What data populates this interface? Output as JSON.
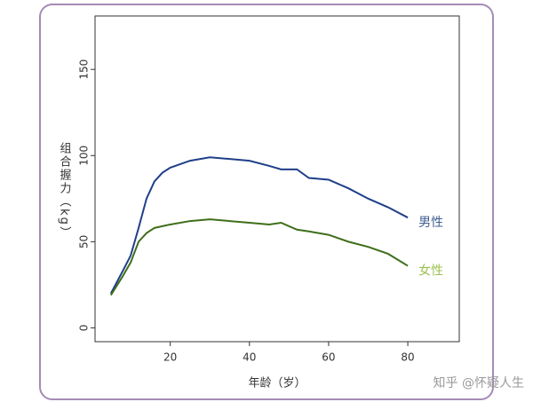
{
  "chart_data": {
    "type": "line",
    "y_label": "组合握力（kg）",
    "x_label": "年龄（岁）",
    "x": [
      5,
      8,
      10,
      12,
      14,
      16,
      18,
      20,
      25,
      30,
      35,
      40,
      45,
      48,
      52,
      55,
      60,
      65,
      70,
      75,
      80
    ],
    "series": [
      {
        "name": "男性",
        "color": "#1f3f8a",
        "label_color": "#3f5f8f",
        "values": [
          20,
          33,
          42,
          58,
          75,
          85,
          90,
          93,
          97,
          99,
          98,
          97,
          94,
          92,
          92,
          87,
          86,
          81,
          75,
          70,
          64
        ]
      },
      {
        "name": "女性",
        "color": "#3f6e1a",
        "label_color": "#9dc050",
        "values": [
          19,
          30,
          38,
          50,
          55,
          58,
          59,
          60,
          62,
          63,
          62,
          61,
          60,
          61,
          57,
          56,
          54,
          50,
          47,
          43,
          36
        ]
      }
    ],
    "xlim": [
      1,
      93
    ],
    "ylim": [
      -8,
      181
    ],
    "xticks": [
      20,
      40,
      60,
      80
    ],
    "yticks": [
      0,
      50,
      100,
      150
    ]
  },
  "watermark": "知乎 @怀疑人生"
}
